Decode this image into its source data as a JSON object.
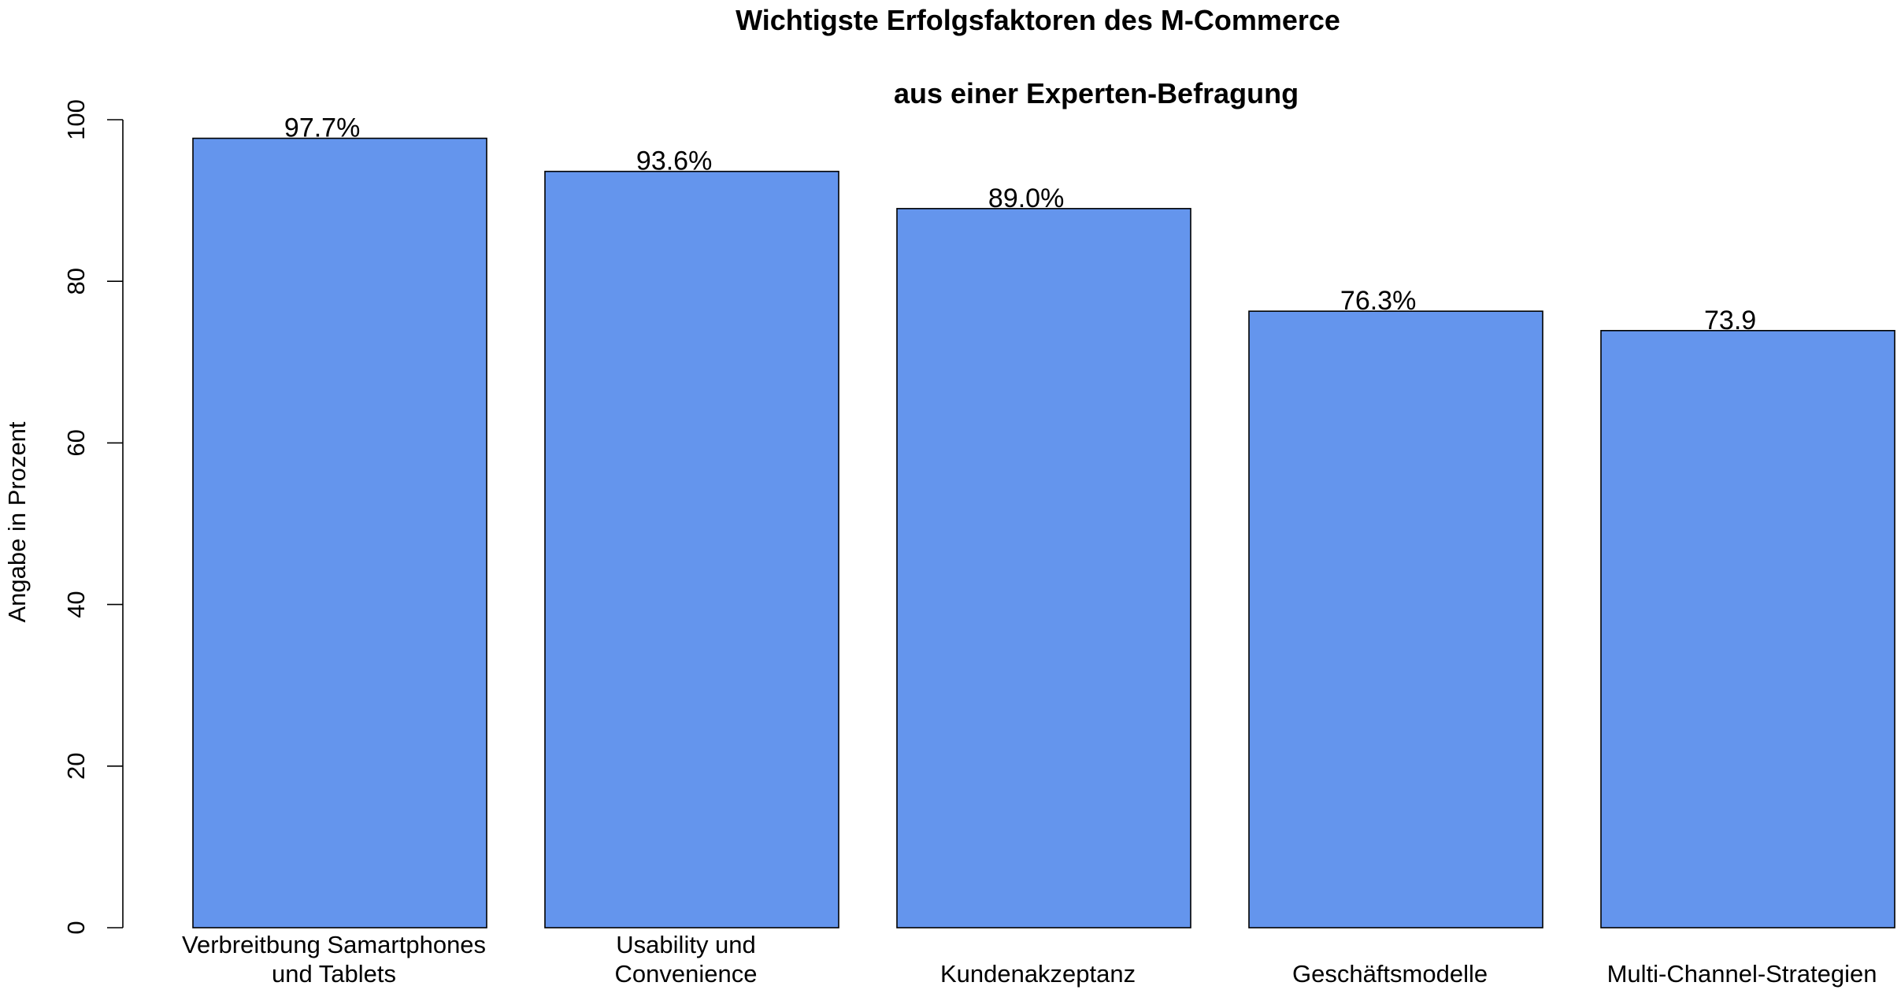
{
  "chart_data": {
    "type": "bar",
    "title": "Wichtigste Erfolgsfaktoren des M-Commerce",
    "subtitle": "aus einer Experten-Befragung",
    "xlabel": "",
    "ylabel": "Angabe in Prozent",
    "ylim": [
      0,
      100
    ],
    "yticks": [
      0,
      20,
      40,
      60,
      80,
      100
    ],
    "grid": false,
    "legend": "none",
    "bar_color": "#6495ED",
    "categories": [
      [
        "Verbreitbung Samartphones",
        "und Tablets"
      ],
      [
        "Usability und",
        "Convenience"
      ],
      [
        "Kundenakzeptanz"
      ],
      [
        "Geschäftsmodelle"
      ],
      [
        "Multi-Channel-Strategien"
      ]
    ],
    "values": [
      97.7,
      93.6,
      89.0,
      76.3,
      73.9
    ],
    "value_labels": [
      "97.7%",
      "93.6%",
      "89.0%",
      "76.3%",
      "73.9"
    ]
  }
}
